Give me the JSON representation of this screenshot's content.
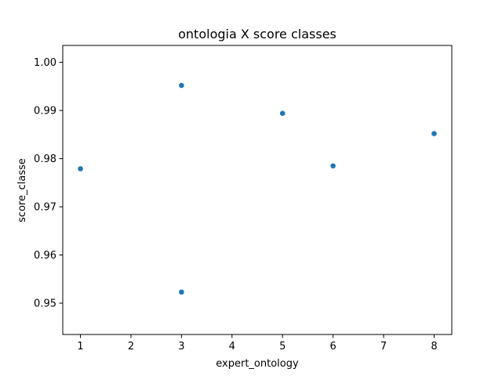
{
  "chart_data": {
    "type": "scatter",
    "title": "ontologia X score classes",
    "xlabel": "expert_ontology",
    "ylabel": "score_classe",
    "xlim": [
      0.65,
      8.35
    ],
    "ylim": [
      0.9435,
      1.0035
    ],
    "xticks": [
      1,
      2,
      3,
      4,
      5,
      6,
      7,
      8
    ],
    "xtick_labels": [
      "1",
      "2",
      "3",
      "4",
      "5",
      "6",
      "7",
      "8"
    ],
    "yticks": [
      0.95,
      0.96,
      0.97,
      0.98,
      0.99,
      1.0
    ],
    "ytick_labels": [
      "0.95",
      "0.96",
      "0.97",
      "0.98",
      "0.99",
      "1.00"
    ],
    "grid": false,
    "marker_color": "#1f77b4",
    "points": [
      {
        "x": 1,
        "y": 0.9779
      },
      {
        "x": 3,
        "y": 0.9952
      },
      {
        "x": 3,
        "y": 0.9523
      },
      {
        "x": 5,
        "y": 0.9894
      },
      {
        "x": 6,
        "y": 0.9785
      },
      {
        "x": 8,
        "y": 0.9852
      }
    ]
  }
}
